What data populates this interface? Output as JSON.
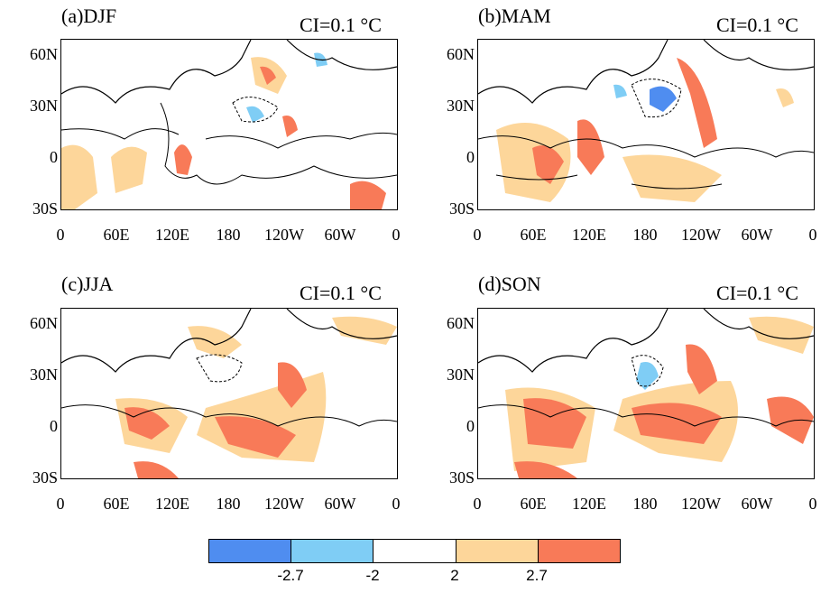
{
  "panels": [
    {
      "title": "(a)DJF",
      "ci": "CI=0.1 °C"
    },
    {
      "title": "(b)MAM",
      "ci": "CI=0.1 °C"
    },
    {
      "title": "(c)JJA",
      "ci": "CI=0.1 °C"
    },
    {
      "title": "(d)SON",
      "ci": "CI=0.1 °C"
    }
  ],
  "lat_labels": [
    "60N",
    "30N",
    "0",
    "30S"
  ],
  "lon_labels": [
    "0",
    "60E",
    "120E",
    "180",
    "120W",
    "60W",
    "0"
  ],
  "colorbar": {
    "colors": [
      "#4f8df0",
      "#7fcdf5",
      "#ffffff",
      "#fdd69a",
      "#f87a58"
    ],
    "labels": [
      "-2.7",
      "-2",
      "2",
      "2.7"
    ]
  },
  "map_colors": {
    "land_outline": "#000000",
    "contour": "#000000",
    "warm_light": "#fdd69a",
    "warm_strong": "#f87a58",
    "cool_light": "#7fcdf5",
    "cool_strong": "#4f8df0"
  }
}
